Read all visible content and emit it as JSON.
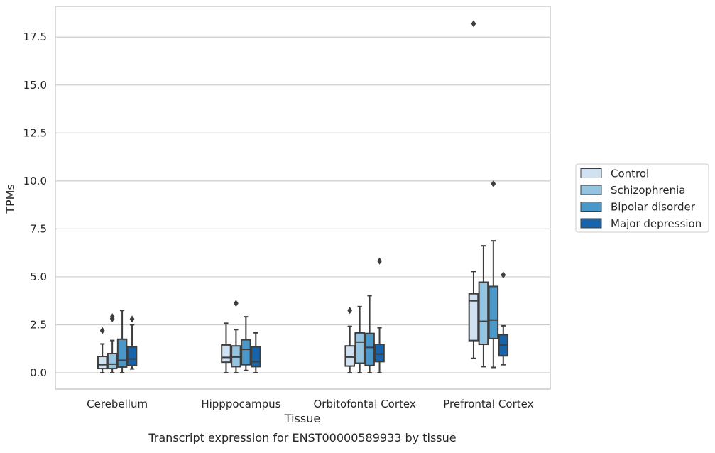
{
  "chart_data": {
    "type": "box",
    "xlabel": "Tissue",
    "ylabel": "TPMs",
    "caption": "Transcript expression for ENST00000589933 by tissue",
    "ylim": [
      -0.85,
      19.1
    ],
    "yticks": [
      "0.0",
      "2.5",
      "5.0",
      "7.5",
      "10.0",
      "12.5",
      "15.0",
      "17.5"
    ],
    "ytick_values": [
      0,
      2.5,
      5,
      7.5,
      10,
      12.5,
      15,
      17.5
    ],
    "grid": "horizontal",
    "legend_position": "right",
    "categories": [
      "Cerebellum",
      "Hipppocampus",
      "Orbitofontal Cortex",
      "Prefrontal Cortex"
    ],
    "series": [
      {
        "name": "Control",
        "color": "#d0e1f2",
        "boxes": [
          {
            "min": 0.0,
            "q1": 0.22,
            "median": 0.42,
            "q3": 0.85,
            "max": 1.5,
            "outliers": [
              2.2
            ]
          },
          {
            "min": 0.0,
            "q1": 0.55,
            "median": 0.8,
            "q3": 1.45,
            "max": 2.58,
            "outliers": []
          },
          {
            "min": 0.0,
            "q1": 0.35,
            "median": 0.82,
            "q3": 1.4,
            "max": 2.42,
            "outliers": [
              3.25
            ]
          },
          {
            "min": 0.75,
            "q1": 1.68,
            "median": 3.75,
            "q3": 4.12,
            "max": 5.28,
            "outliers": [
              18.2
            ]
          }
        ]
      },
      {
        "name": "Schizophrenia",
        "color": "#94c4df",
        "boxes": [
          {
            "min": 0.0,
            "q1": 0.22,
            "median": 0.45,
            "q3": 1.0,
            "max": 1.68,
            "outliers": [
              2.82,
              2.92
            ]
          },
          {
            "min": 0.0,
            "q1": 0.32,
            "median": 0.82,
            "q3": 1.4,
            "max": 2.25,
            "outliers": [
              3.62
            ]
          },
          {
            "min": 0.0,
            "q1": 0.5,
            "median": 1.6,
            "q3": 2.08,
            "max": 3.45,
            "outliers": []
          },
          {
            "min": 0.32,
            "q1": 1.48,
            "median": 2.68,
            "q3": 4.72,
            "max": 6.62,
            "outliers": []
          }
        ]
      },
      {
        "name": "Bipolar disorder",
        "color": "#4a98c9",
        "boxes": [
          {
            "min": 0.0,
            "q1": 0.3,
            "median": 0.65,
            "q3": 1.75,
            "max": 3.25,
            "outliers": []
          },
          {
            "min": 0.12,
            "q1": 0.42,
            "median": 1.22,
            "q3": 1.72,
            "max": 2.92,
            "outliers": []
          },
          {
            "min": 0.0,
            "q1": 0.38,
            "median": 1.32,
            "q3": 2.05,
            "max": 4.02,
            "outliers": []
          },
          {
            "min": 0.28,
            "q1": 1.78,
            "median": 2.75,
            "q3": 4.5,
            "max": 6.88,
            "outliers": [
              9.85
            ]
          }
        ]
      },
      {
        "name": "Major depression",
        "color": "#1764ab",
        "boxes": [
          {
            "min": 0.2,
            "q1": 0.38,
            "median": 0.72,
            "q3": 1.35,
            "max": 2.5,
            "outliers": [
              2.8
            ]
          },
          {
            "min": 0.0,
            "q1": 0.32,
            "median": 0.58,
            "q3": 1.35,
            "max": 2.08,
            "outliers": []
          },
          {
            "min": 0.0,
            "q1": 0.58,
            "median": 0.98,
            "q3": 1.48,
            "max": 2.35,
            "outliers": [
              5.82
            ]
          },
          {
            "min": 0.42,
            "q1": 0.88,
            "median": 1.45,
            "q3": 1.98,
            "max": 2.45,
            "outliers": [
              5.1
            ]
          }
        ]
      }
    ]
  }
}
